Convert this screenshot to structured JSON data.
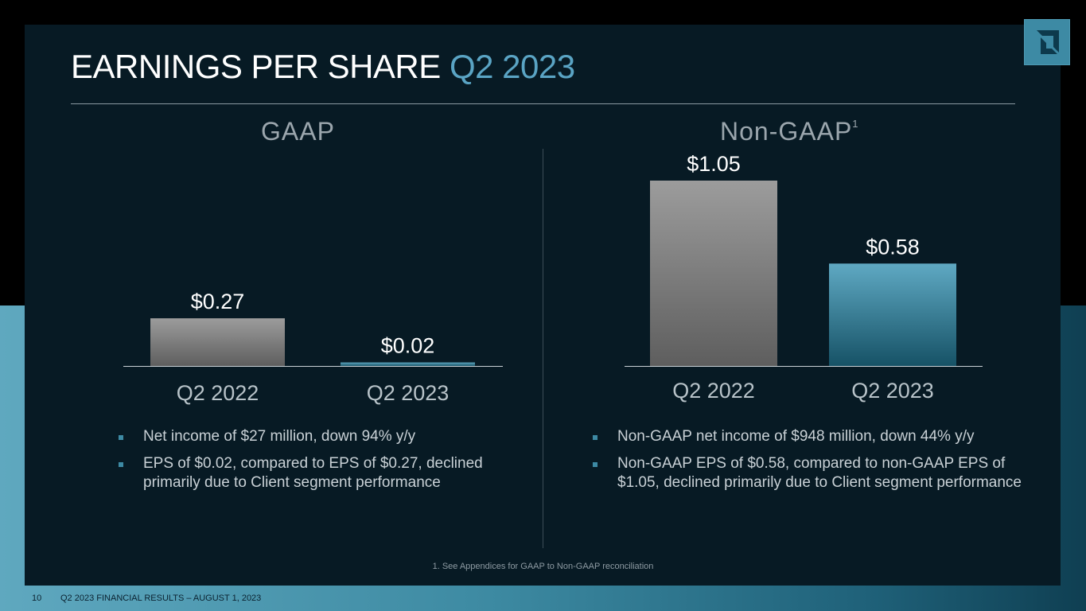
{
  "slide": {
    "title_main": "EARNINGS PER SHARE",
    "title_highlight": "Q2 2023",
    "page_number": "10",
    "footer_text": "Q2 2023 FINANCIAL RESULTS – AUGUST 1, 2023",
    "footnote": "1. See Appendices for GAAP to Non-GAAP reconciliation"
  },
  "gaap": {
    "heading": "GAAP",
    "bullets": [
      "Net income of $27 million, down 94% y/y",
      "EPS of $0.02, compared to EPS of $0.27, declined primarily due to Client segment performance"
    ]
  },
  "nongaap": {
    "heading": "Non-GAAP",
    "heading_sup": "1",
    "bullets": [
      "Non-GAAP net income of $948 million, down 44% y/y",
      "Non-GAAP EPS of $0.58, compared to non-GAAP EPS of $1.05, declined primarily due to Client segment performance"
    ]
  },
  "colors": {
    "accent": "#5aa4c4",
    "prior_bar_top": "#9c9c9c",
    "prior_bar_bottom": "#5e5e5e",
    "current_bar_top": "#5fa9c3",
    "current_bar_bottom": "#165266"
  },
  "chart_data": [
    {
      "type": "bar",
      "title": "GAAP",
      "categories": [
        "Q2 2022",
        "Q2 2023"
      ],
      "values": [
        0.27,
        0.02
      ],
      "data_labels": [
        "$0.27",
        "$0.02"
      ],
      "ylim": [
        0,
        1.05
      ],
      "xlabel": "",
      "ylabel": ""
    },
    {
      "type": "bar",
      "title": "Non-GAAP",
      "categories": [
        "Q2 2022",
        "Q2 2023"
      ],
      "values": [
        1.05,
        0.58
      ],
      "data_labels": [
        "$1.05",
        "$0.58"
      ],
      "ylim": [
        0,
        1.05
      ],
      "xlabel": "",
      "ylabel": ""
    }
  ]
}
